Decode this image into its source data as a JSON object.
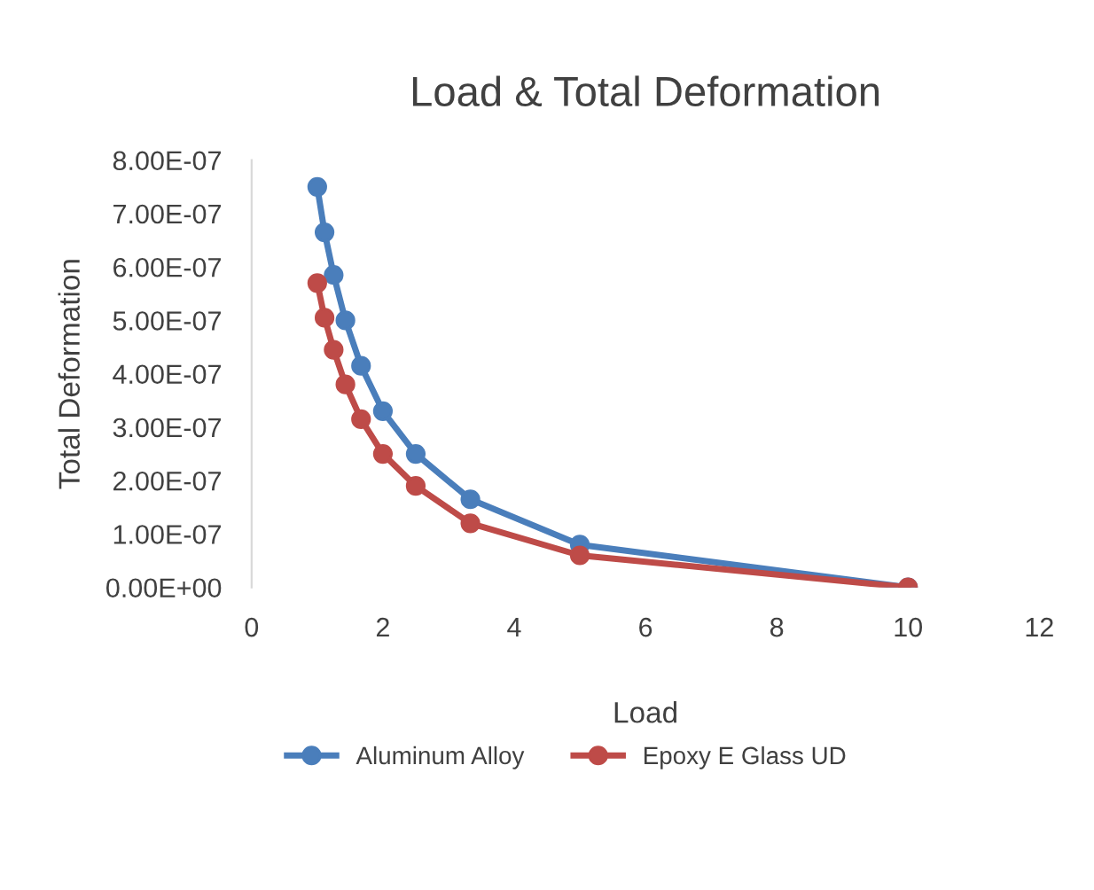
{
  "chart_data": {
    "type": "line",
    "title": "Load & Total Deformation",
    "xlabel": "Load",
    "ylabel": "Total Deformation",
    "series": [
      {
        "name": "Aluminum Alloy",
        "color": "#4a7ebb",
        "x": [
          1,
          1.111,
          1.25,
          1.429,
          1.667,
          2,
          2.5,
          3.333,
          5,
          10
        ],
        "values": [
          7.5e-07,
          6.65e-07,
          5.85e-07,
          5e-07,
          4.15e-07,
          3.3e-07,
          2.5e-07,
          1.65e-07,
          8e-08,
          0
        ]
      },
      {
        "name": "Epoxy E Glass UD",
        "color": "#be4b48",
        "x": [
          1,
          1.111,
          1.25,
          1.429,
          1.667,
          2,
          2.5,
          3.333,
          5,
          10
        ],
        "values": [
          5.7e-07,
          5.05e-07,
          4.45e-07,
          3.8e-07,
          3.15e-07,
          2.5e-07,
          1.9e-07,
          1.2e-07,
          6e-08,
          0
        ]
      }
    ],
    "xlim": [
      0,
      12
    ],
    "xticks": [
      0,
      2,
      4,
      6,
      8,
      10,
      12
    ],
    "ylim": [
      0,
      8e-07
    ],
    "yticks": [
      {
        "value": 0,
        "label": "0.00E+00"
      },
      {
        "value": 1e-07,
        "label": "1.00E-07"
      },
      {
        "value": 2e-07,
        "label": "2.00E-07"
      },
      {
        "value": 3e-07,
        "label": "3.00E-07"
      },
      {
        "value": 4e-07,
        "label": "4.00E-07"
      },
      {
        "value": 5e-07,
        "label": "5.00E-07"
      },
      {
        "value": 6e-07,
        "label": "6.00E-07"
      },
      {
        "value": 7e-07,
        "label": "7.00E-07"
      },
      {
        "value": 8e-07,
        "label": "8.00E-07"
      }
    ],
    "marker": "circle",
    "legend": "bottom"
  }
}
